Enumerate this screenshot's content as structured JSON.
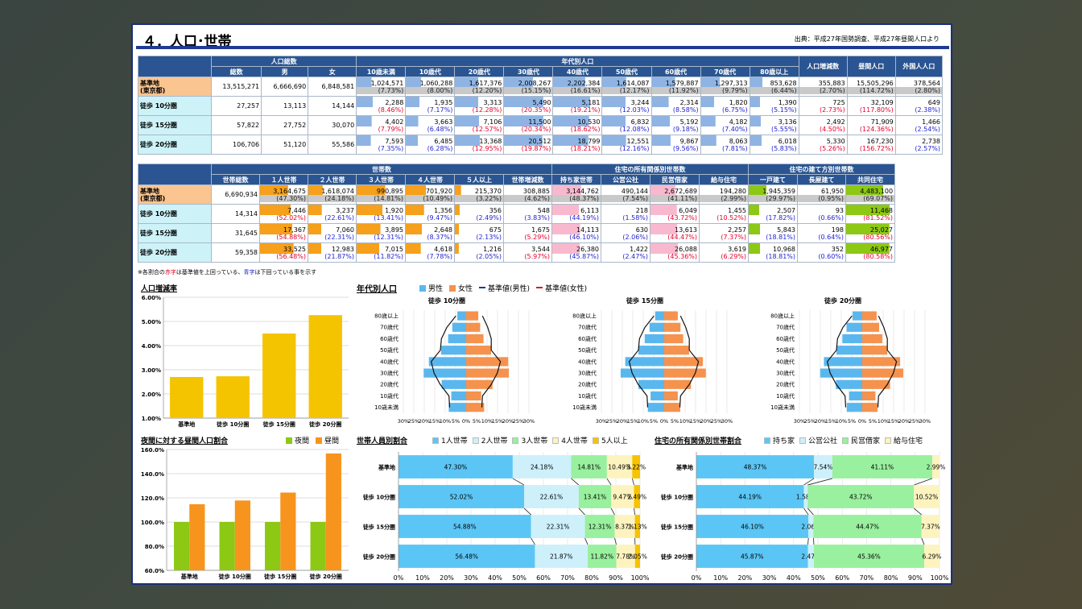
{
  "slide": {
    "title": "４．人口･世帯",
    "source": "出典：平成27年国勢調査、平成27年昼間人口より"
  },
  "colors": {
    "male": "#5ab7ee",
    "female": "#f5924e",
    "header": "#2a5592",
    "base_row": "#fac591",
    "walk_row": "#cdf3f8"
  },
  "pop_table": {
    "group_headers": [
      "人口総数",
      "年代別人口",
      "人口増減数",
      "昼間人口",
      "外国人人口"
    ],
    "columns": [
      "総数",
      "男",
      "女",
      "10歳未満",
      "10歳代",
      "20歳代",
      "30歳代",
      "40歳代",
      "50歳代",
      "60歳代",
      "70歳代",
      "80歳以上"
    ],
    "rows": [
      {
        "label": "基準地",
        "label2": "(東京都)",
        "vals": [
          "13,515,271",
          "6,666,690",
          "6,848,581",
          "1,024,571",
          "1,060,288",
          "1,617,376",
          "2,008,267",
          "2,202,384",
          "1,614,087",
          "1,579,887",
          "1,297,313",
          "853,628",
          "355,883",
          "15,505,296",
          "378,564"
        ],
        "pcts": [
          "",
          "",
          "",
          "(7.73%)",
          "(8.00%)",
          "(12.20%)",
          "(15.15%)",
          "(16.61%)",
          "(12.17%)",
          "(11.92%)",
          "(9.79%)",
          "(6.44%)",
          "(2.70%)",
          "(114.72%)",
          "(2.80%)"
        ]
      },
      {
        "label": "徒歩 10分圏",
        "label2": "",
        "vals": [
          "27,257",
          "13,113",
          "14,144",
          "2,288",
          "1,935",
          "3,313",
          "5,490",
          "5,181",
          "3,244",
          "2,314",
          "1,820",
          "1,390",
          "725",
          "32,109",
          "649"
        ],
        "pcts": [
          "",
          "",
          "",
          "(8.46%)",
          "(7.17%)",
          "(12.28%)",
          "(20.35%)",
          "(19.21%)",
          "(12.03%)",
          "(8.58%)",
          "(6.75%)",
          "(5.15%)",
          "(2.73%)",
          "(117.80%)",
          "(2.38%)"
        ]
      },
      {
        "label": "徒歩 15分圏",
        "label2": "",
        "vals": [
          "57,822",
          "27,752",
          "30,070",
          "4,402",
          "3,663",
          "7,106",
          "11,500",
          "10,530",
          "6,832",
          "5,192",
          "4,182",
          "3,136",
          "2,492",
          "71,909",
          "1,466"
        ],
        "pcts": [
          "",
          "",
          "",
          "(7.79%)",
          "(6.48%)",
          "(12.57%)",
          "(20.34%)",
          "(18.62%)",
          "(12.08%)",
          "(9.18%)",
          "(7.40%)",
          "(5.55%)",
          "(4.50%)",
          "(124.36%)",
          "(2.54%)"
        ]
      },
      {
        "label": "徒歩 20分圏",
        "label2": "",
        "vals": [
          "106,706",
          "51,120",
          "55,586",
          "7,593",
          "6,485",
          "13,368",
          "20,512",
          "18,799",
          "12,551",
          "9,867",
          "8,063",
          "6,018",
          "5,330",
          "167,230",
          "2,738"
        ],
        "pcts": [
          "",
          "",
          "",
          "(7.35%)",
          "(6.28%)",
          "(12.95%)",
          "(19.87%)",
          "(18.21%)",
          "(12.16%)",
          "(9.56%)",
          "(7.81%)",
          "(5.83%)",
          "(5.26%)",
          "(156.72%)",
          "(2.57%)"
        ]
      }
    ]
  },
  "hh_table": {
    "group_headers": [
      "世帯数",
      "住宅の所有関係別世帯数",
      "住宅の建て方別世帯数"
    ],
    "columns": [
      "世帯総数",
      "１人世帯",
      "２人世帯",
      "３人世帯",
      "４人世帯",
      "５人以上",
      "世帯増減数",
      "持ち家世帯",
      "公営公社",
      "民営借家",
      "給与住宅",
      "一戸建て",
      "長屋建て",
      "共同住宅"
    ],
    "rows": [
      {
        "label": "基準地",
        "label2": "(東京都)",
        "vals": [
          "6,690,934",
          "3,164,675",
          "1,618,074",
          "990,895",
          "701,920",
          "215,370",
          "308,885",
          "3,144,762",
          "490,144",
          "2,672,689",
          "194,280",
          "1,945,359",
          "61,950",
          "4,483,100"
        ],
        "pcts": [
          "",
          "(47.30%)",
          "(24.18%)",
          "(14.81%)",
          "(10.49%)",
          "(3.22%)",
          "(4.62%)",
          "(48.37%)",
          "(7.54%)",
          "(41.11%)",
          "(2.99%)",
          "(29.97%)",
          "(0.95%)",
          "(69.07%)"
        ]
      },
      {
        "label": "徒歩 10分圏",
        "label2": "",
        "vals": [
          "14,314",
          "7,446",
          "3,237",
          "1,920",
          "1,356",
          "356",
          "548",
          "6,113",
          "218",
          "6,049",
          "1,455",
          "2,507",
          "93",
          "11,468"
        ],
        "pcts": [
          "",
          "(52.02%)",
          "(22.61%)",
          "(13.41%)",
          "(9.47%)",
          "(2.49%)",
          "(3.83%)",
          "(44.19%)",
          "(1.58%)",
          "(43.72%)",
          "(10.52%)",
          "(17.82%)",
          "(0.66%)",
          "(81.52%)"
        ]
      },
      {
        "label": "徒歩 15分圏",
        "label2": "",
        "vals": [
          "31,645",
          "17,367",
          "7,060",
          "3,895",
          "2,648",
          "675",
          "1,675",
          "14,113",
          "630",
          "13,613",
          "2,257",
          "5,843",
          "198",
          "25,027"
        ],
        "pcts": [
          "",
          "(54.88%)",
          "(22.31%)",
          "(12.31%)",
          "(8.37%)",
          "(2.13%)",
          "(5.29%)",
          "(46.10%)",
          "(2.06%)",
          "(44.47%)",
          "(7.37%)",
          "(18.81%)",
          "(0.64%)",
          "(80.56%)"
        ]
      },
      {
        "label": "徒歩 20分圏",
        "label2": "",
        "vals": [
          "59,358",
          "33,525",
          "12,983",
          "7,015",
          "4,618",
          "1,216",
          "3,544",
          "26,380",
          "1,422",
          "26,088",
          "3,619",
          "10,968",
          "352",
          "46,977"
        ],
        "pcts": [
          "",
          "(56.48%)",
          "(21.87%)",
          "(11.82%)",
          "(7.78%)",
          "(2.05%)",
          "(5.97%)",
          "(45.87%)",
          "(2.47%)",
          "(45.36%)",
          "(6.29%)",
          "(18.81%)",
          "(0.60%)",
          "(80.58%)"
        ]
      }
    ]
  },
  "note": {
    "prefix": "※各割合の",
    "red": "赤字",
    "mid": "は基準値を上回っている、",
    "blue": "青字",
    "suffix": "は下回っている事を示す"
  },
  "chart_data": [
    {
      "id": "growth",
      "type": "bar",
      "title": "人口増減率",
      "categories": [
        "基準地",
        "徒歩 10分圏",
        "徒歩 15分圏",
        "徒歩 20分圏"
      ],
      "values": [
        2.7,
        2.73,
        4.5,
        5.26
      ],
      "ylim": [
        1.0,
        6.0
      ],
      "yticks": [
        "1.00%",
        "2.00%",
        "3.00%",
        "4.00%",
        "5.00%",
        "6.00%"
      ],
      "color": "#f5c400",
      "grid": true
    },
    {
      "id": "daynight",
      "type": "bar",
      "title": "夜間に対する昼間人口割合",
      "categories": [
        "基準地",
        "徒歩 10分圏",
        "徒歩 15分圏",
        "徒歩 20分圏"
      ],
      "series": [
        {
          "name": "夜間",
          "values": [
            100,
            100,
            100,
            100
          ],
          "color": "#8cc814"
        },
        {
          "name": "昼間",
          "values": [
            114.72,
            117.8,
            124.36,
            156.72
          ],
          "color": "#f7941d"
        }
      ],
      "ylim": [
        60,
        160
      ],
      "yticks": [
        "60.0%",
        "80.0%",
        "100.0%",
        "120.0%",
        "140.0%",
        "160.0%"
      ],
      "legend": "top-right",
      "grid": true
    },
    {
      "id": "pyramids",
      "type": "bar",
      "title": "年代別人口",
      "legend_items": [
        "男性",
        "女性",
        "基準値(男性)",
        "基準値(女性)"
      ],
      "age_groups": [
        "10歳未満",
        "10歳代",
        "20歳代",
        "30歳代",
        "40歳代",
        "50歳代",
        "60歳代",
        "70歳代",
        "80歳以上"
      ],
      "xticks": [
        "30%",
        "25%",
        "20%",
        "15%",
        "10%",
        "5%",
        "0%",
        "5%",
        "10%",
        "15%",
        "20%",
        "25%",
        "30%"
      ],
      "charts": [
        {
          "name": "徒歩 10分圏",
          "male": [
            8.3,
            7.1,
            11.7,
            20.3,
            17.8,
            12.0,
            8.6,
            6.6,
            4.2
          ],
          "female": [
            8.6,
            7.2,
            12.6,
            20.4,
            20.1,
            11.9,
            8.3,
            6.7,
            5.8
          ]
        },
        {
          "name": "徒歩 15分圏",
          "male": [
            7.8,
            6.5,
            12.3,
            20.8,
            18.6,
            12.3,
            9.3,
            7.0,
            4.3
          ],
          "female": [
            7.7,
            6.5,
            12.8,
            19.9,
            18.5,
            11.9,
            9.1,
            7.8,
            6.5
          ]
        },
        {
          "name": "徒歩 20分圏",
          "male": [
            7.4,
            6.3,
            12.6,
            20.1,
            18.3,
            12.3,
            9.5,
            7.5,
            4.6
          ],
          "female": [
            7.3,
            6.3,
            13.3,
            19.6,
            18.1,
            12.0,
            9.6,
            8.1,
            6.9
          ]
        }
      ],
      "base_male": [
        7.9,
        8.2,
        12.4,
        15.3,
        16.7,
        12.3,
        11.8,
        9.2,
        4.9
      ],
      "base_female": [
        7.5,
        7.8,
        12.0,
        14.9,
        16.4,
        12.0,
        12.0,
        10.3,
        7.8
      ]
    },
    {
      "id": "hhsize",
      "type": "bar",
      "title": "世帯人員別割合",
      "categories": [
        "基準地",
        "徒歩 10分圏",
        "徒歩 15分圏",
        "徒歩 20分圏"
      ],
      "series": [
        {
          "name": "1人世帯",
          "values": [
            47.3,
            52.02,
            54.88,
            56.48
          ],
          "labels": [
            "47.30%",
            "52.02%",
            "54.88%",
            "56.48%"
          ],
          "color": "#5bc6f5"
        },
        {
          "name": "2人世帯",
          "values": [
            24.18,
            22.61,
            22.31,
            21.87
          ],
          "labels": [
            "24.18%",
            "22.61%",
            "22.31%",
            "21.87%"
          ],
          "color": "#cdf0fb"
        },
        {
          "name": "3人世帯",
          "values": [
            14.81,
            13.41,
            12.31,
            11.82
          ],
          "labels": [
            "14.81%",
            "13.41%",
            "12.31%",
            "11.82%"
          ],
          "color": "#99f09e"
        },
        {
          "name": "4人世帯",
          "values": [
            10.49,
            9.47,
            8.37,
            7.78
          ],
          "labels": [
            "10.49%",
            "9.47%",
            "8.37%",
            "7.78%"
          ],
          "color": "#fdf3bf"
        },
        {
          "name": "5人以上",
          "values": [
            3.22,
            2.49,
            2.13,
            2.05
          ],
          "labels": [
            "3.22%",
            "2.49%",
            "2.13%",
            "2.05%"
          ],
          "color": "#f7c200"
        }
      ],
      "xticks": [
        "0%",
        "10%",
        "20%",
        "30%",
        "40%",
        "50%",
        "60%",
        "70%",
        "80%",
        "90%",
        "100%"
      ],
      "legend": "top"
    },
    {
      "id": "tenure",
      "type": "bar",
      "title": "住宅の所有関係別世帯割合",
      "categories": [
        "基準地",
        "徒歩 10分圏",
        "徒歩 15分圏",
        "徒歩 20分圏"
      ],
      "series": [
        {
          "name": "持ち家",
          "values": [
            48.37,
            44.19,
            46.1,
            45.87
          ],
          "labels": [
            "48.37%",
            "44.19%",
            "46.10%",
            "45.87%"
          ],
          "color": "#5bc6f5"
        },
        {
          "name": "公営公社",
          "values": [
            7.54,
            1.58,
            2.06,
            2.47
          ],
          "labels": [
            "7.54%",
            "1.58%",
            "2.06%",
            "2.47%"
          ],
          "color": "#cdf0fb"
        },
        {
          "name": "民営借家",
          "values": [
            41.11,
            43.72,
            44.47,
            45.36
          ],
          "labels": [
            "41.11%",
            "43.72%",
            "44.47%",
            "45.36%"
          ],
          "color": "#99f09e"
        },
        {
          "name": "給与住宅",
          "values": [
            2.99,
            10.52,
            7.37,
            6.29
          ],
          "labels": [
            "2.99%",
            "10.52%",
            "7.37%",
            "6.29%"
          ],
          "color": "#fdf3bf"
        }
      ],
      "xticks": [
        "0%",
        "10%",
        "20%",
        "30%",
        "40%",
        "50%",
        "60%",
        "70%",
        "80%",
        "90%",
        "100%"
      ],
      "legend": "top"
    }
  ]
}
